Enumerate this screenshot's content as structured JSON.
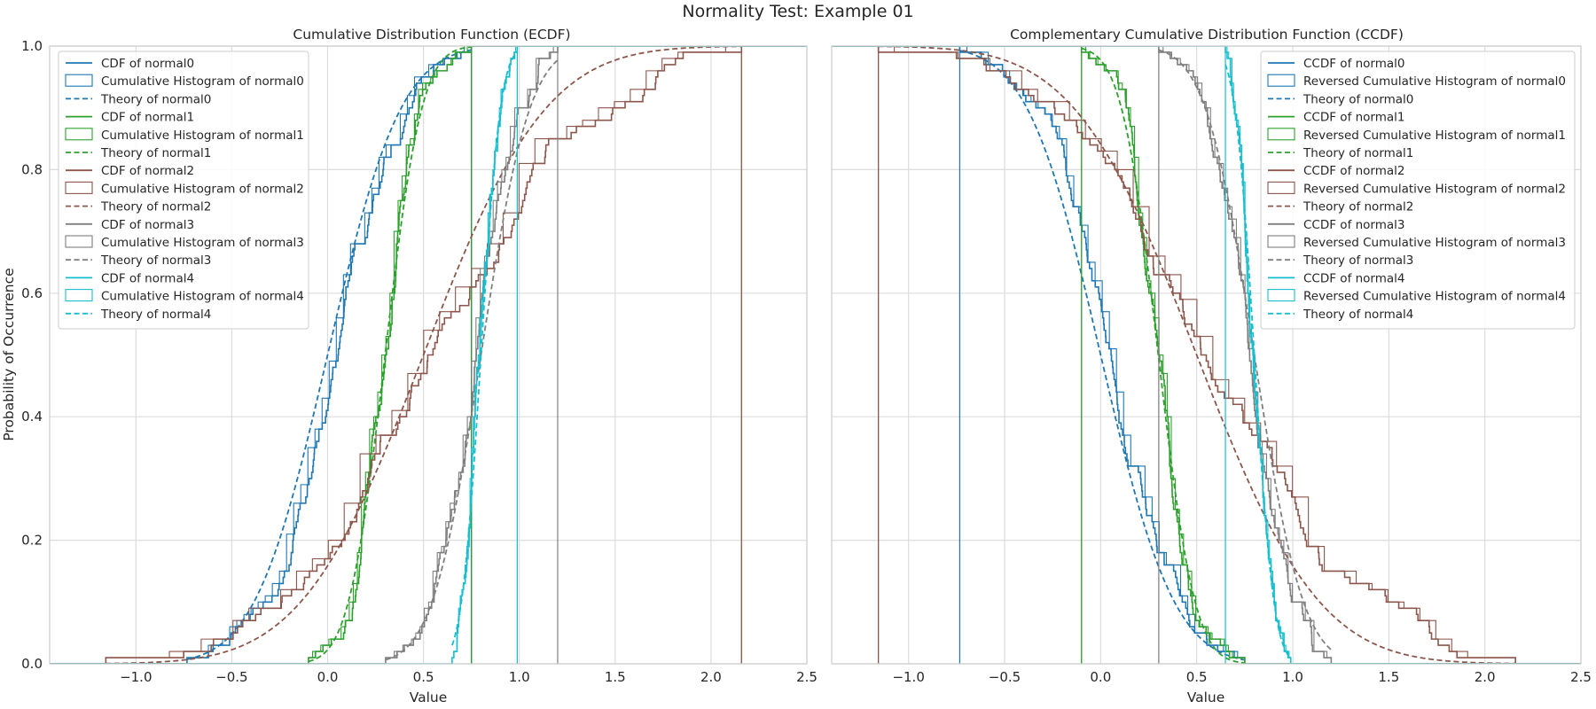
{
  "figure": {
    "title": "Normality Test: Example 01"
  },
  "chart_data": [
    {
      "type": "line",
      "title": "Cumulative Distribution Function (ECDF)",
      "xlabel": "Value",
      "ylabel": "Probability of Occurrence",
      "xlim": [
        -1.45,
        2.5
      ],
      "ylim": [
        0.0,
        1.0
      ],
      "xticks": [
        "−1.0",
        "−0.5",
        "0.0",
        "0.5",
        "1.0",
        "1.5",
        "2.0",
        "2.5"
      ],
      "xtick_values": [
        -1.0,
        -0.5,
        0.0,
        0.5,
        1.0,
        1.5,
        2.0,
        2.5
      ],
      "yticks": [
        "0.0",
        "0.2",
        "0.4",
        "0.6",
        "0.8",
        "1.0"
      ],
      "ytick_values": [
        0.0,
        0.2,
        0.4,
        0.6,
        0.8,
        1.0
      ],
      "grid": true,
      "legend_position": "top-left",
      "legend": [
        "CDF of normal0",
        "Cumulative Histogram of normal0",
        "Theory of normal0",
        "CDF of normal1",
        "Cumulative Histogram of normal1",
        "Theory of normal1",
        "CDF of normal2",
        "Cumulative Histogram of normal2",
        "Theory of normal2",
        "CDF of normal3",
        "Cumulative Histogram of normal3",
        "Theory of normal3",
        "CDF of normal4",
        "Cumulative Histogram of normal4",
        "Theory of normal4"
      ]
    },
    {
      "type": "line",
      "title": "Complementary Cumulative Distribution Function (CCDF)",
      "xlabel": "Value",
      "ylabel": "",
      "xlim": [
        -1.4,
        2.5
      ],
      "ylim": [
        0.0,
        1.0
      ],
      "xticks": [
        "−1.0",
        "−0.5",
        "0.0",
        "0.5",
        "1.0",
        "1.5",
        "2.0",
        "2.5"
      ],
      "xtick_values": [
        -1.0,
        -0.5,
        0.0,
        0.5,
        1.0,
        1.5,
        2.0,
        2.5
      ],
      "yticks": [],
      "ytick_values": [],
      "grid": true,
      "legend_position": "top-right",
      "legend": [
        "CCDF of normal0",
        "Reversed Cumulative Histogram of normal0",
        "Theory of normal0",
        "CCDF of normal1",
        "Reversed Cumulative Histogram of normal1",
        "Theory of normal1",
        "CCDF of normal2",
        "Reversed Cumulative Histogram of normal2",
        "Theory of normal2",
        "CCDF of normal3",
        "Reversed Cumulative Histogram of normal3",
        "Theory of normal3",
        "CCDF of normal4",
        "Reversed Cumulative Histogram of normal4",
        "Theory of normal4"
      ]
    }
  ],
  "distributions": [
    {
      "color": "#1f77b4",
      "mean": 0.0,
      "std": 0.3,
      "min": -1.05,
      "max": 0.75
    },
    {
      "color": "#2ca02c",
      "mean": 0.3,
      "std": 0.15,
      "min": -0.18,
      "max": 0.75
    },
    {
      "color": "#8c564b",
      "mean": 0.5,
      "std": 0.5,
      "min": -1.22,
      "max": 2.33
    },
    {
      "color": "#7f7f7f",
      "mean": 0.8,
      "std": 0.2,
      "min": -0.03,
      "max": 1.26
    },
    {
      "color": "#17becf",
      "mean": 0.8,
      "std": 0.08,
      "min": 0.57,
      "max": 1.11
    }
  ]
}
